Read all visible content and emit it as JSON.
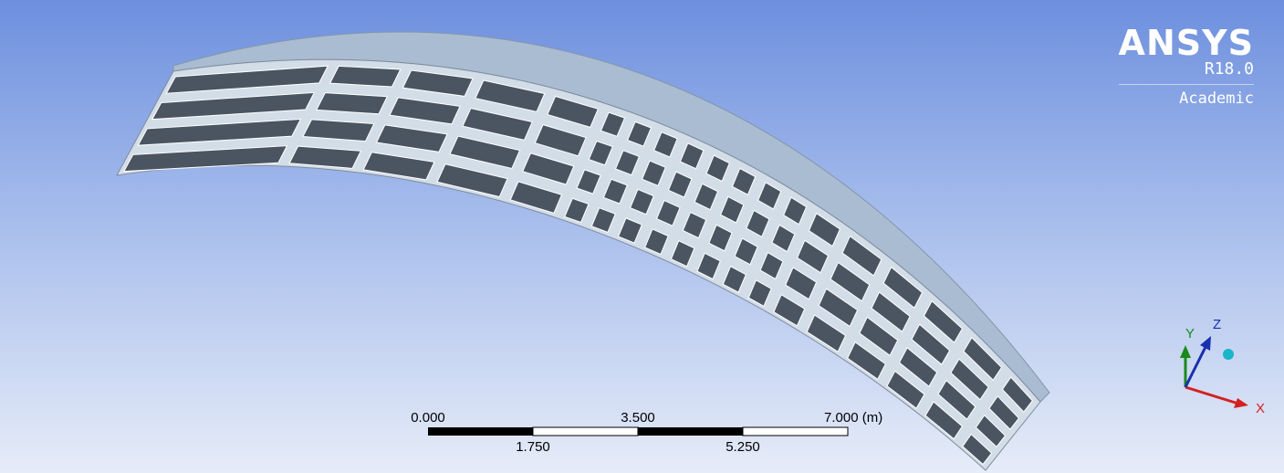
{
  "brand": {
    "name": "ANSYS",
    "version": "R18.0",
    "edition": "Academic"
  },
  "scale_bar": {
    "ticks_top": [
      "0.000",
      "3.500",
      "7.000 (m)"
    ],
    "ticks_bottom": [
      "1.750",
      "5.250"
    ]
  },
  "triad": {
    "x_label": "X",
    "y_label": "Y",
    "z_label": "Z",
    "x_color": "#d42020",
    "y_color": "#1a8a1a",
    "z_color": "#1a2fb0",
    "iso_ball_color": "#19b5c8"
  },
  "model": {
    "top_face_color": "#a9bcd1",
    "rib_color": "#d3dde8",
    "cell_color": "#4b5461"
  }
}
